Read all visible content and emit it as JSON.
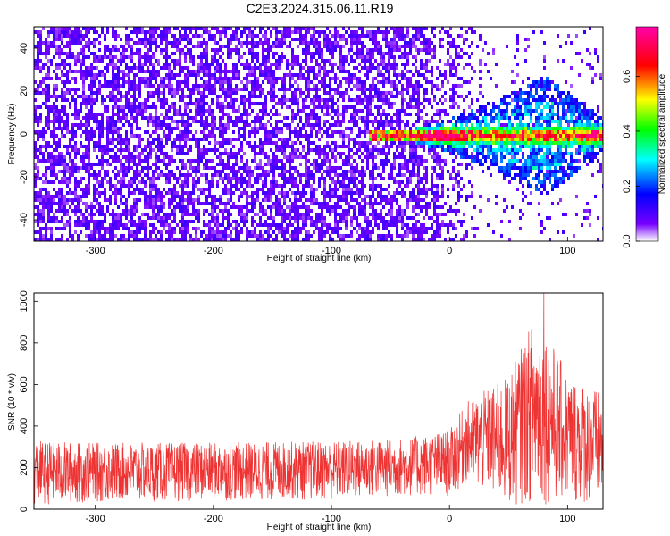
{
  "title": "C2E3.2024.315.06.11.R19",
  "chart_data": [
    {
      "type": "heatmap",
      "xlabel": "Height of straight line (km)",
      "ylabel": "Frequency (Hz)",
      "xlim": [
        -352,
        130
      ],
      "ylim": [
        -50,
        50
      ],
      "x_ticks": [
        "-300",
        "-200",
        "-100",
        "0",
        "100"
      ],
      "y_ticks": [
        "-40",
        "-20",
        "0",
        "20",
        "40"
      ],
      "colorbar": {
        "label": "Normalized spectral amplitude",
        "range": [
          0.0,
          0.78
        ],
        "ticks": [
          "0.0",
          "0.2",
          "0.4",
          "0.6"
        ],
        "colors": [
          "#ffffff",
          "#7700ff",
          "#0000ff",
          "#00ffff",
          "#00ff00",
          "#ffff00",
          "#ff0000",
          "#ff00aa"
        ]
      },
      "features": {
        "noise_floor_x_range": [
          -352,
          -30
        ],
        "noise_floor_amplitude": 0.08,
        "signal_band_center_hz": 0,
        "signal_start_km": -70,
        "signal_envelope_peak_km": 80,
        "signal_envelope_halfwidth_hz": 28,
        "peak_amplitude": 0.75
      }
    },
    {
      "type": "line",
      "xlabel": "Height of straight line (km)",
      "ylabel": "SNR (10 * v/v)",
      "xlim": [
        -352,
        130
      ],
      "ylim": [
        0,
        1040
      ],
      "x_ticks": [
        "-300",
        "-200",
        "-100",
        "0",
        "100"
      ],
      "y_ticks": [
        "0",
        "200",
        "400",
        "600",
        "800",
        "1000"
      ],
      "series_color": "#ee3333",
      "envelope": [
        {
          "x": -350,
          "low": 20,
          "high": 330
        },
        {
          "x": -300,
          "low": 30,
          "high": 320
        },
        {
          "x": -200,
          "low": 40,
          "high": 320
        },
        {
          "x": -100,
          "low": 40,
          "high": 330
        },
        {
          "x": -40,
          "low": 60,
          "high": 340
        },
        {
          "x": 0,
          "low": 60,
          "high": 380
        },
        {
          "x": 15,
          "low": 120,
          "high": 520
        },
        {
          "x": 50,
          "low": 10,
          "high": 640
        },
        {
          "x": 70,
          "low": 30,
          "high": 900
        },
        {
          "x": 80,
          "low": 20,
          "high": 880
        },
        {
          "x": 100,
          "low": 30,
          "high": 650
        },
        {
          "x": 130,
          "low": 10,
          "high": 560
        }
      ],
      "peak": {
        "x": 80,
        "y": 1040
      }
    }
  ]
}
